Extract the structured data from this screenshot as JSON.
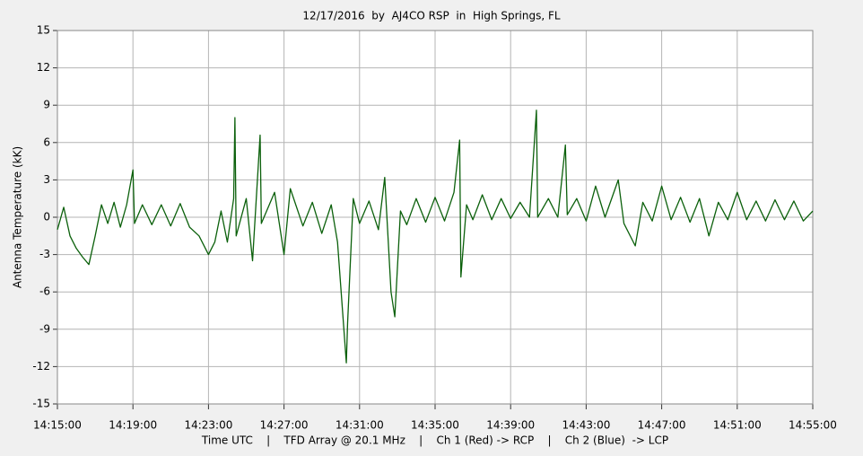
{
  "chart_data": {
    "type": "line",
    "title": "12/17/2016  by  AJ4CO RSP  in  High Springs, FL",
    "xlabel": "Time UTC    |    TFD Array @ 20.1 MHz    |    Ch 1 (Red) -> RCP    |    Ch 2 (Blue)  -> LCP",
    "ylabel": "Antenna Temperature (kK)",
    "color": "#0b600b",
    "grid": true,
    "xlim": [
      "14:15:00",
      "14:55:00"
    ],
    "xticks": [
      "14:15:00",
      "14:19:00",
      "14:23:00",
      "14:27:00",
      "14:31:00",
      "14:35:00",
      "14:39:00",
      "14:43:00",
      "14:47:00",
      "14:51:00",
      "14:55:00"
    ],
    "ylim": [
      -15,
      15
    ],
    "yticks": [
      15,
      12,
      9,
      6,
      3,
      0,
      -3,
      -6,
      -9,
      -12,
      -15
    ],
    "x": [
      "14:15:00",
      "14:15:20",
      "14:15:40",
      "14:16:00",
      "14:16:20",
      "14:16:40",
      "14:17:00",
      "14:17:20",
      "14:17:40",
      "14:18:00",
      "14:18:20",
      "14:18:40",
      "14:19:00",
      "14:19:05",
      "14:19:30",
      "14:20:00",
      "14:20:30",
      "14:21:00",
      "14:21:30",
      "14:22:00",
      "14:22:30",
      "14:23:00",
      "14:23:20",
      "14:23:40",
      "14:24:00",
      "14:24:20",
      "14:24:24",
      "14:24:28",
      "14:25:00",
      "14:25:20",
      "14:25:44",
      "14:25:48",
      "14:26:30",
      "14:27:00",
      "14:27:20",
      "14:28:00",
      "14:28:30",
      "14:29:00",
      "14:29:30",
      "14:29:50",
      "14:30:18",
      "14:30:22",
      "14:30:40",
      "14:31:00",
      "14:31:30",
      "14:32:00",
      "14:32:20",
      "14:32:40",
      "14:32:52",
      "14:33:10",
      "14:33:30",
      "14:34:00",
      "14:34:30",
      "14:35:00",
      "14:35:30",
      "14:36:00",
      "14:36:18",
      "14:36:22",
      "14:36:40",
      "14:37:00",
      "14:37:30",
      "14:38:00",
      "14:38:30",
      "14:39:00",
      "14:39:30",
      "14:40:00",
      "14:40:22",
      "14:40:26",
      "14:41:00",
      "14:41:30",
      "14:41:54",
      "14:42:00",
      "14:42:30",
      "14:43:00",
      "14:43:30",
      "14:44:00",
      "14:44:42",
      "14:45:00",
      "14:45:36",
      "14:46:00",
      "14:46:30",
      "14:47:00",
      "14:47:30",
      "14:48:00",
      "14:48:30",
      "14:49:00",
      "14:49:30",
      "14:50:00",
      "14:50:30",
      "14:51:00",
      "14:51:30",
      "14:52:00",
      "14:52:30",
      "14:53:00",
      "14:53:30",
      "14:54:00",
      "14:54:30",
      "14:55:00"
    ],
    "values": [
      -1.0,
      0.8,
      -1.5,
      -2.5,
      -3.2,
      -3.8,
      -1.5,
      1.0,
      -0.5,
      1.2,
      -0.8,
      1.0,
      3.8,
      -0.5,
      1.0,
      -0.6,
      1.0,
      -0.7,
      1.1,
      -0.8,
      -1.5,
      -3.0,
      -2.0,
      0.5,
      -2.0,
      1.5,
      8.0,
      -1.5,
      1.5,
      -3.5,
      6.6,
      -0.5,
      2.0,
      -3.0,
      2.3,
      -0.7,
      1.2,
      -1.3,
      1.0,
      -2.0,
      -11.7,
      -8.5,
      1.5,
      -0.5,
      1.3,
      -1.0,
      3.2,
      -6.0,
      -8.0,
      0.5,
      -0.6,
      1.5,
      -0.4,
      1.6,
      -0.3,
      2.0,
      6.2,
      -4.8,
      1.0,
      -0.2,
      1.8,
      -0.2,
      1.5,
      -0.1,
      1.2,
      0.0,
      8.6,
      0.0,
      1.5,
      0.0,
      5.8,
      0.2,
      1.5,
      -0.3,
      2.5,
      0.0,
      3.0,
      -0.5,
      -2.3,
      1.2,
      -0.3,
      2.5,
      -0.2,
      1.6,
      -0.4,
      1.5,
      -1.5,
      1.2,
      -0.2,
      2.0,
      -0.2,
      1.3,
      -0.3,
      1.4,
      -0.2,
      1.3,
      -0.3,
      0.5
    ]
  }
}
